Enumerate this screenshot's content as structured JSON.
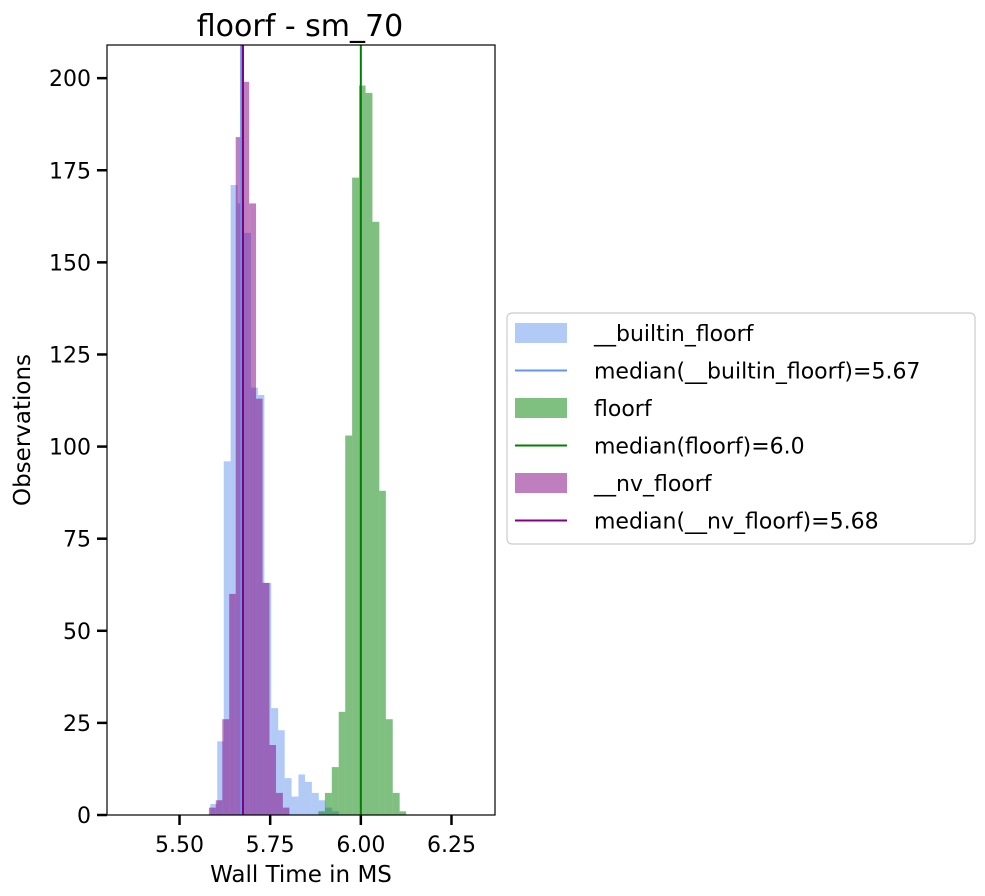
{
  "chart_data": {
    "type": "histogram",
    "title": "floorf - sm_70",
    "xlabel": "Wall Time in MS",
    "ylabel": "Observations",
    "xlim": [
      5.3,
      6.37
    ],
    "ylim": [
      0,
      209
    ],
    "xticks": [
      5.5,
      5.75,
      6.0,
      6.25
    ],
    "xtick_labels": [
      "5.50",
      "5.75",
      "6.00",
      "6.25"
    ],
    "yticks": [
      0,
      25,
      50,
      75,
      100,
      125,
      150,
      175,
      200
    ],
    "ytick_labels": [
      "0",
      "25",
      "50",
      "75",
      "100",
      "125",
      "150",
      "175",
      "200"
    ],
    "grid": false,
    "legend_placement": "right, outside",
    "series": [
      {
        "name": "__builtin_floorf",
        "color": "#6495ed",
        "opacity": 0.5,
        "bins": [
          {
            "x0": 5.585,
            "x1": 5.604,
            "y": 3
          },
          {
            "x0": 5.604,
            "x1": 5.622,
            "y": 20
          },
          {
            "x0": 5.622,
            "x1": 5.641,
            "y": 96
          },
          {
            "x0": 5.641,
            "x1": 5.66,
            "y": 171
          },
          {
            "x0": 5.66,
            "x1": 5.678,
            "y": 166
          },
          {
            "x0": 5.678,
            "x1": 5.697,
            "y": 158
          },
          {
            "x0": 5.697,
            "x1": 5.716,
            "y": 116
          },
          {
            "x0": 5.716,
            "x1": 5.734,
            "y": 114
          },
          {
            "x0": 5.734,
            "x1": 5.753,
            "y": 63
          },
          {
            "x0": 5.753,
            "x1": 5.772,
            "y": 29
          },
          {
            "x0": 5.772,
            "x1": 5.79,
            "y": 23
          },
          {
            "x0": 5.79,
            "x1": 5.809,
            "y": 10
          },
          {
            "x0": 5.809,
            "x1": 5.828,
            "y": 5
          },
          {
            "x0": 5.828,
            "x1": 5.846,
            "y": 11
          },
          {
            "x0": 5.846,
            "x1": 5.865,
            "y": 9
          },
          {
            "x0": 5.865,
            "x1": 5.884,
            "y": 6
          },
          {
            "x0": 5.884,
            "x1": 5.902,
            "y": 4
          },
          {
            "x0": 5.902,
            "x1": 5.921,
            "y": 2
          },
          {
            "x0": 5.921,
            "x1": 5.94,
            "y": 1
          }
        ]
      },
      {
        "name": "floorf",
        "color": "#008000",
        "opacity": 0.5,
        "bins": [
          {
            "x0": 5.883,
            "x1": 5.901,
            "y": 1
          },
          {
            "x0": 5.901,
            "x1": 5.92,
            "y": 6
          },
          {
            "x0": 5.92,
            "x1": 5.939,
            "y": 13
          },
          {
            "x0": 5.939,
            "x1": 5.957,
            "y": 28
          },
          {
            "x0": 5.957,
            "x1": 5.976,
            "y": 103
          },
          {
            "x0": 5.976,
            "x1": 5.995,
            "y": 173
          },
          {
            "x0": 5.995,
            "x1": 6.013,
            "y": 198
          },
          {
            "x0": 6.013,
            "x1": 6.032,
            "y": 196
          },
          {
            "x0": 6.032,
            "x1": 6.051,
            "y": 161
          },
          {
            "x0": 6.051,
            "x1": 6.069,
            "y": 88
          },
          {
            "x0": 6.069,
            "x1": 6.088,
            "y": 26
          },
          {
            "x0": 6.088,
            "x1": 6.107,
            "y": 6
          },
          {
            "x0": 6.107,
            "x1": 6.125,
            "y": 1
          }
        ]
      },
      {
        "name": "__nv_floorf",
        "color": "#800080",
        "opacity": 0.5,
        "bins": [
          {
            "x0": 5.581,
            "x1": 5.6,
            "y": 2
          },
          {
            "x0": 5.6,
            "x1": 5.618,
            "y": 4
          },
          {
            "x0": 5.618,
            "x1": 5.637,
            "y": 26
          },
          {
            "x0": 5.637,
            "x1": 5.655,
            "y": 60
          },
          {
            "x0": 5.655,
            "x1": 5.674,
            "y": 184
          },
          {
            "x0": 5.674,
            "x1": 5.692,
            "y": 199
          },
          {
            "x0": 5.692,
            "x1": 5.711,
            "y": 166
          },
          {
            "x0": 5.711,
            "x1": 5.729,
            "y": 113
          },
          {
            "x0": 5.729,
            "x1": 5.748,
            "y": 63
          },
          {
            "x0": 5.748,
            "x1": 5.766,
            "y": 19
          },
          {
            "x0": 5.766,
            "x1": 5.785,
            "y": 6
          },
          {
            "x0": 5.785,
            "x1": 5.803,
            "y": 2
          }
        ]
      }
    ],
    "medians": [
      {
        "name": "median(__builtin_floorf)=5.67",
        "x": 5.67,
        "color": "#6495ed"
      },
      {
        "name": "median(floorf)=6.0",
        "x": 6.0,
        "color": "#008000"
      },
      {
        "name": "median(__nv_floorf)=5.68",
        "x": 5.675,
        "color": "#800080"
      }
    ],
    "legend": [
      {
        "kind": "patch",
        "label": "__builtin_floorf",
        "color": "#6495ed"
      },
      {
        "kind": "line",
        "label": "median(__builtin_floorf)=5.67",
        "color": "#6495ed"
      },
      {
        "kind": "patch",
        "label": "floorf",
        "color": "#008000"
      },
      {
        "kind": "line",
        "label": "median(floorf)=6.0",
        "color": "#008000"
      },
      {
        "kind": "patch",
        "label": "__nv_floorf",
        "color": "#800080"
      },
      {
        "kind": "line",
        "label": "median(__nv_floorf)=5.68",
        "color": "#800080"
      }
    ]
  }
}
